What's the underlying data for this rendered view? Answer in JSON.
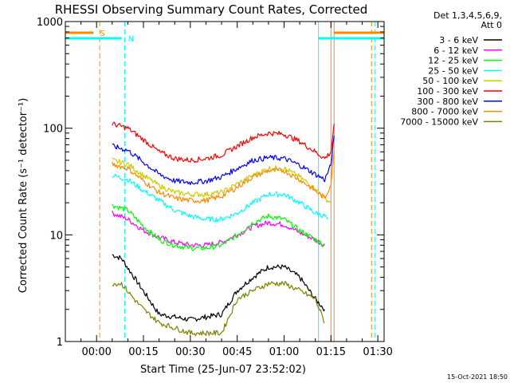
{
  "chart_data": {
    "type": "line",
    "title": "RHESSI Observing Summary Count Rates, Corrected",
    "xlabel": "Start Time (25-Jun-07 23:52:02)",
    "ylabel": "Corrected Count Rate (s⁻¹ detector⁻¹)",
    "y_scale": "log",
    "ylim": [
      1,
      1000
    ],
    "xlim_minutes_after_midnight": [
      -10,
      92
    ],
    "x_ticks": [
      {
        "t": 0,
        "label": "00:00"
      },
      {
        "t": 15,
        "label": "00:15"
      },
      {
        "t": 30,
        "label": "00:30"
      },
      {
        "t": 45,
        "label": "00:45"
      },
      {
        "t": 60,
        "label": "01:00"
      },
      {
        "t": 75,
        "label": "01:15"
      },
      {
        "t": 90,
        "label": "01:30"
      }
    ],
    "y_ticks": [
      {
        "v": 1,
        "label": "1"
      },
      {
        "v": 10,
        "label": "10"
      },
      {
        "v": 100,
        "label": "100"
      },
      {
        "v": 1000,
        "label": "1000"
      }
    ],
    "legend_header": [
      "Det 1,3,4,5,6,9,",
      "Att 0"
    ],
    "legend_placement": "right",
    "series": [
      {
        "name": "3 - 6 keV",
        "color": "#000000",
        "x": [
          5,
          8,
          12,
          20,
          30,
          40,
          45,
          50,
          55,
          60,
          65,
          70,
          73
        ],
        "y": [
          6.5,
          6,
          4,
          1.8,
          1.6,
          1.8,
          3,
          4,
          5,
          5,
          4,
          2.5,
          2
        ]
      },
      {
        "name": "6 - 12 keV",
        "color": "#ff00ff",
        "x": [
          5,
          10,
          15,
          20,
          25,
          30,
          35,
          40,
          45,
          50,
          55,
          60,
          65,
          70,
          73
        ],
        "y": [
          16,
          14,
          11,
          9.5,
          8.5,
          8,
          8,
          8.5,
          10,
          12,
          13,
          12.5,
          10.5,
          9,
          8
        ]
      },
      {
        "name": "12 - 25 keV",
        "color": "#00ff00",
        "x": [
          5,
          10,
          15,
          20,
          25,
          30,
          35,
          40,
          45,
          50,
          55,
          60,
          65,
          70,
          73
        ],
        "y": [
          19,
          17,
          12,
          9,
          8,
          7.5,
          7.5,
          8,
          10,
          13,
          15,
          14,
          11,
          9,
          8
        ]
      },
      {
        "name": "25 - 50 keV",
        "color": "#00ffff",
        "x": [
          5,
          10,
          15,
          20,
          25,
          30,
          35,
          40,
          45,
          50,
          55,
          60,
          65,
          70,
          73,
          74
        ],
        "y": [
          36,
          33,
          26,
          21,
          17,
          15,
          14,
          14,
          16,
          20,
          24,
          24,
          20,
          16,
          15,
          14
        ]
      },
      {
        "name": "50 - 100 keV",
        "color": "#cccc00",
        "x": [
          5,
          10,
          15,
          20,
          25,
          30,
          35,
          40,
          45,
          50,
          55,
          60,
          65,
          70,
          73,
          75
        ],
        "y": [
          50,
          46,
          36,
          29,
          25,
          24,
          24,
          25,
          30,
          36,
          42,
          42,
          35,
          27,
          22,
          20
        ]
      },
      {
        "name": "100 - 300 keV",
        "color": "#ff0000",
        "x": [
          5,
          10,
          15,
          20,
          25,
          30,
          35,
          40,
          45,
          50,
          55,
          60,
          65,
          70,
          73,
          75,
          76
        ],
        "y": [
          110,
          100,
          78,
          60,
          52,
          50,
          52,
          56,
          68,
          82,
          90,
          88,
          75,
          60,
          52,
          60,
          110
        ]
      },
      {
        "name": "300 - 800 keV",
        "color": "#0000ff",
        "x": [
          5,
          10,
          15,
          20,
          25,
          30,
          35,
          40,
          45,
          50,
          55,
          60,
          65,
          70,
          73,
          75,
          76
        ],
        "y": [
          68,
          62,
          48,
          37,
          32,
          31,
          32,
          35,
          42,
          50,
          53,
          52,
          45,
          37,
          33,
          45,
          85
        ]
      },
      {
        "name": "800 - 7000 keV",
        "color": "#ff8800",
        "x": [
          5,
          10,
          15,
          20,
          25,
          30,
          35,
          40,
          45,
          50,
          55,
          60,
          65,
          70,
          73,
          75,
          76
        ],
        "y": [
          46,
          42,
          32,
          25,
          22,
          21,
          21,
          23,
          28,
          35,
          40,
          40,
          33,
          26,
          22,
          30,
          60
        ]
      },
      {
        "name": "7000 - 15000 keV",
        "color": "#808000",
        "x": [
          5,
          8,
          12,
          15,
          20,
          30,
          40,
          45,
          50,
          55,
          60,
          65,
          70,
          73
        ],
        "y": [
          3.5,
          3.5,
          2.5,
          2,
          1.5,
          1.2,
          1.2,
          2.5,
          3,
          3.5,
          3.5,
          3,
          2.5,
          1.5
        ]
      }
    ],
    "flag_bars": [
      {
        "color": "#ff8800",
        "x_start": -10,
        "x_end": -1,
        "label": "S"
      },
      {
        "color": "#00ffff",
        "x_start": -10,
        "x_end": 8,
        "label": "N"
      },
      {
        "color": "#00ffff",
        "x_start": 71,
        "x_end": 92,
        "label": ""
      },
      {
        "color": "#ff8800",
        "x_start": 76,
        "x_end": 92,
        "label": ""
      }
    ],
    "vertical_markers": [
      {
        "t": -10,
        "color": "#00ffff",
        "style": "solid"
      },
      {
        "t": 1,
        "color": "#ff8800",
        "style": "dashed"
      },
      {
        "t": 9,
        "color": "#00ffff",
        "style": "dashed"
      },
      {
        "t": 71,
        "color": "#00ffff",
        "style": "solid"
      },
      {
        "t": 75,
        "color": "#ff8800",
        "style": "solid"
      },
      {
        "t": 76,
        "color": "#ff8800",
        "style": "solid"
      },
      {
        "t": 88,
        "color": "#ff8800",
        "style": "dashed"
      },
      {
        "t": 89,
        "color": "#00ffff",
        "style": "dashed"
      }
    ],
    "footer_timestamp": "15-Oct-2021 18:50"
  }
}
